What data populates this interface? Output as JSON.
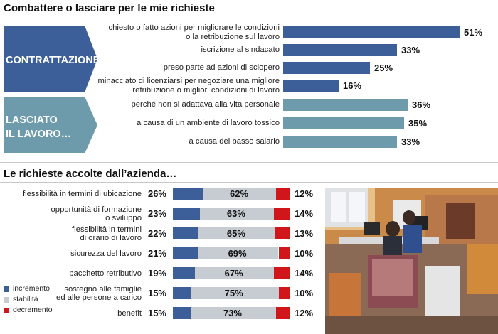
{
  "section1": {
    "title": "Combattere o lasciare per le mie richieste",
    "groups": [
      {
        "label": "CONTRATTAZIONE",
        "color": "#3c5f9a"
      },
      {
        "label_line1": "LASCIATO",
        "label_line2": "IL LAVORO…",
        "color": "#6e9bab"
      }
    ]
  },
  "section2": {
    "title": "Le richieste accolte dall’azienda…",
    "legend": [
      {
        "label": "incremento",
        "color": "#3c5f9a"
      },
      {
        "label": "stabilità",
        "color": "#c6ccd2"
      },
      {
        "label": "decremento",
        "color": "#d0161b"
      }
    ]
  },
  "chart_data": [
    {
      "type": "bar",
      "title": "Combattere o lasciare per le mie richieste",
      "orientation": "horizontal",
      "value_unit": "%",
      "categories": [
        "chiesto o fatto azioni per migliorare le condizioni o la retribuzione sul lavoro",
        "iscrizione al sindacato",
        "preso parte ad azioni di sciopero",
        "minacciato di licenziarsi per negoziare una migliore retribuzione o migliori condizioni di lavoro",
        "perché non si adattava alla vita personale",
        "a causa di un ambiente di lavoro tossico",
        "a causa del basso salario"
      ],
      "label_lines": [
        [
          "chiesto o fatto azioni per migliorare le condizioni",
          "o la retribuzione sul lavoro"
        ],
        [
          "iscrizione al sindacato"
        ],
        [
          "preso parte ad azioni di sciopero"
        ],
        [
          "minacciato di licenziarsi per negoziare una migliore",
          "retribuzione o migliori condizioni di lavoro"
        ],
        [
          "perché non si adattava alla vita personale"
        ],
        [
          "a causa di un ambiente di lavoro tossico"
        ],
        [
          "a causa del basso salario"
        ]
      ],
      "values": [
        51,
        33,
        25,
        16,
        36,
        35,
        33
      ],
      "value_labels": [
        "51%",
        "33%",
        "25%",
        "16%",
        "36%",
        "35%",
        "33%"
      ],
      "groups": [
        {
          "name": "CONTRATTAZIONE",
          "items": [
            0,
            1,
            2,
            3
          ]
        },
        {
          "name": "LASCIATO IL LAVORO…",
          "items": [
            4,
            5,
            6
          ]
        }
      ]
    },
    {
      "type": "bar",
      "stacked": true,
      "orientation": "horizontal",
      "title": "Le richieste accolte dall’azienda…",
      "value_unit": "%",
      "categories": [
        "flessibilità in termini di ubicazione",
        "opportunità di formazione o sviluppo",
        "flessibilità in termini di orario di lavoro",
        "sicurezza del lavoro",
        "pacchetto retributivo",
        "sostegno alle famiglie ed alle persone a carico",
        "benefit"
      ],
      "label_lines": [
        [
          "flessibilità in termini di ubicazione"
        ],
        [
          "opportunità di formazione",
          "o sviluppo"
        ],
        [
          "flessibilità in termini",
          "di orario di lavoro"
        ],
        [
          "sicurezza del lavoro"
        ],
        [
          "pacchetto retributivo"
        ],
        [
          "sostegno alle famiglie",
          "ed alle persone a carico"
        ],
        [
          "benefit"
        ]
      ],
      "series": [
        {
          "name": "incremento",
          "color": "#3c5f9a",
          "values": [
            26,
            23,
            22,
            21,
            19,
            15,
            15
          ],
          "value_labels": [
            "26%",
            "23%",
            "22%",
            "21%",
            "19%",
            "15%",
            "15%"
          ]
        },
        {
          "name": "stabilità",
          "color": "#c6ccd2",
          "values": [
            62,
            63,
            65,
            69,
            67,
            75,
            73
          ],
          "value_labels": [
            "62%",
            "63%",
            "65%",
            "69%",
            "67%",
            "75%",
            "73%"
          ]
        },
        {
          "name": "decremento",
          "color": "#d0161b",
          "values": [
            12,
            14,
            13,
            10,
            14,
            10,
            12
          ],
          "value_labels": [
            "12%",
            "14%",
            "13%",
            "10%",
            "14%",
            "10%",
            "12%"
          ]
        }
      ]
    }
  ]
}
